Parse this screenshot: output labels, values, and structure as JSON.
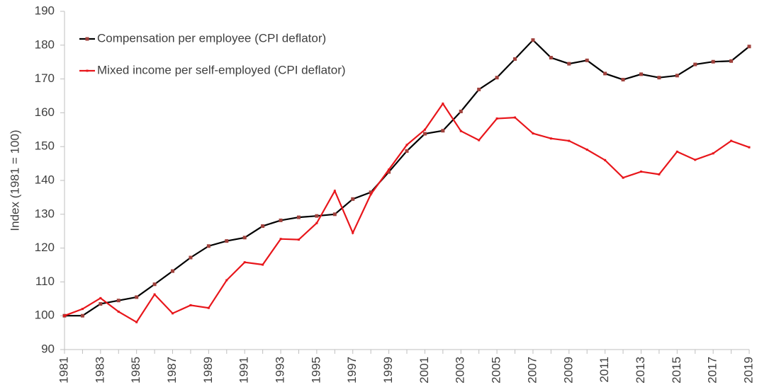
{
  "chart_data": {
    "type": "line",
    "y_label": "Index (1981 = 100)",
    "categories": [
      "1981",
      null,
      "1983",
      null,
      "1985",
      null,
      "1987",
      null,
      "1989",
      null,
      "1991",
      null,
      "1993",
      null,
      "1995",
      null,
      "1997",
      null,
      "1999",
      null,
      "2001",
      null,
      "2003",
      null,
      "2005",
      null,
      "2007",
      null,
      "2009",
      null,
      "2011",
      null,
      "2013",
      null,
      "2015",
      null,
      "2017",
      null,
      "2019"
    ],
    "series": [
      {
        "name": "Compensation per employee (CPI deflator)",
        "color": "#000000",
        "marker_color": "#a0413c",
        "values": [
          100,
          100,
          103.5,
          104.5,
          105.5,
          109.3,
          113.2,
          117.2,
          120.6,
          122.1,
          123.1,
          126.5,
          128.2,
          129.1,
          129.5,
          130,
          134.5,
          136.5,
          142.5,
          148.7,
          153.8,
          154.7,
          160.4,
          166.9,
          170.4,
          175.9,
          181.5,
          176.3,
          174.5,
          175.5,
          171.6,
          169.8,
          171.4,
          170.4,
          171,
          174.3,
          175.1,
          175.3,
          179.6
        ]
      },
      {
        "name": "Mixed income per self-employed (CPI deflator)",
        "color": "#e8161b",
        "marker_color": "#e8161b",
        "values": [
          100,
          102,
          105.2,
          101.2,
          98.1,
          106.3,
          100.7,
          103.1,
          102.3,
          110.5,
          115.8,
          115.1,
          122.7,
          122.5,
          127.4,
          136.9,
          124.5,
          135.9,
          143.2,
          150.5,
          155,
          162.7,
          154.6,
          151.9,
          158.3,
          158.6,
          153.9,
          152.4,
          151.7,
          149.1,
          146,
          140.8,
          142.6,
          141.8,
          148.5,
          146.1,
          148,
          151.7,
          149.8
        ]
      }
    ],
    "ylim": [
      90,
      190
    ],
    "yticks": [
      90,
      100,
      110,
      120,
      130,
      140,
      150,
      160,
      170,
      180,
      190
    ],
    "grid": false,
    "legend": "upper left"
  }
}
